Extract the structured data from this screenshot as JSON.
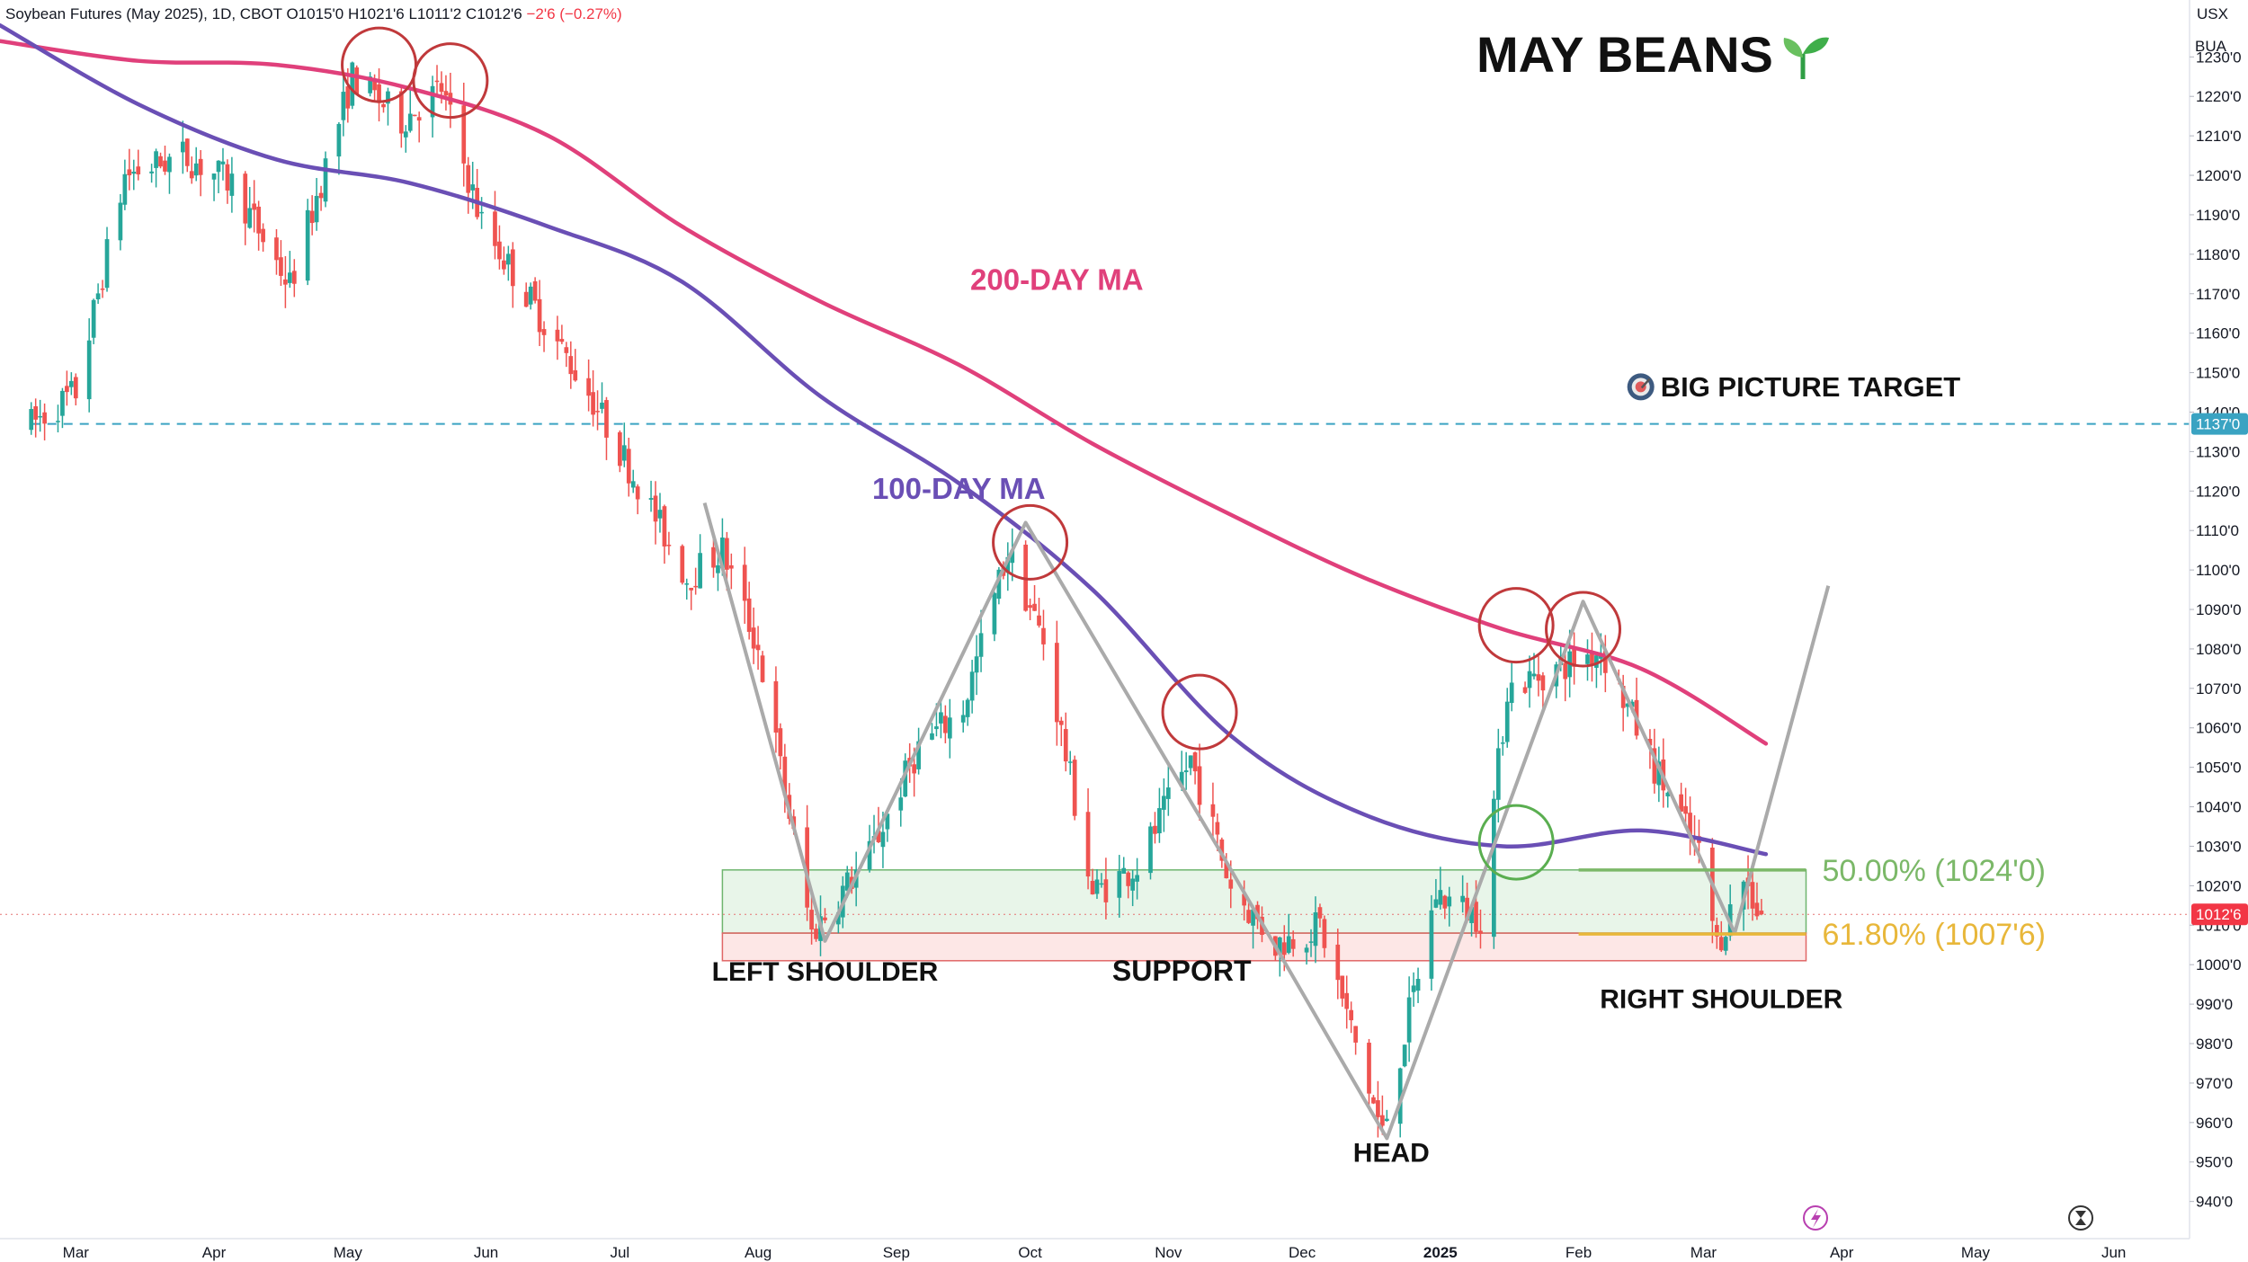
{
  "header": {
    "symbol": "Soybean Futures (May 2025), 1D, CBOT",
    "open": "O1015'0",
    "high": "H1021'6",
    "low": "L1011'2",
    "close": "C1012'6",
    "change": "−2'6 (−0.27%)"
  },
  "axis_units": {
    "currency": "USX",
    "unit": "BUA"
  },
  "title": "MAY BEANS",
  "title_icon": "seedling-icon",
  "colors": {
    "up": "#26a69a",
    "down": "#ef5350",
    "ma200": "#e0407b",
    "ma100": "#6a4fb5",
    "target_line": "#3aa3c2",
    "fib50": "#7bb868",
    "fib618": "#e8b73a",
    "circle_red": "#c0393b",
    "circle_green": "#5aae50",
    "pattern_line": "#aaaaaa"
  },
  "chart_data": {
    "type": "candlestick",
    "y_axis": {
      "ylim": [
        934,
        1241
      ],
      "ticks": [
        "1230'0",
        "1220'0",
        "1210'0",
        "1200'0",
        "1190'0",
        "1180'0",
        "1170'0",
        "1160'0",
        "1150'0",
        "1140'0",
        "1130'0",
        "1120'0",
        "1110'0",
        "1100'0",
        "1090'0",
        "1080'0",
        "1070'0",
        "1060'0",
        "1050'0",
        "1040'0",
        "1030'0",
        "1020'0",
        "1010'0",
        "1000'0",
        "990'0",
        "980'0",
        "970'0",
        "960'0",
        "950'0",
        "940'0"
      ],
      "tick_values": [
        1230,
        1220,
        1210,
        1200,
        1190,
        1180,
        1170,
        1160,
        1150,
        1140,
        1130,
        1120,
        1110,
        1100,
        1090,
        1080,
        1070,
        1060,
        1050,
        1040,
        1030,
        1020,
        1010,
        1000,
        990,
        980,
        970,
        960,
        950,
        940
      ]
    },
    "x_axis": {
      "labels": [
        "Mar",
        "Apr",
        "May",
        "Jun",
        "Jul",
        "Aug",
        "Sep",
        "Oct",
        "Nov",
        "Dec",
        "2025",
        "Feb",
        "Mar",
        "Apr",
        "May",
        "Jun"
      ],
      "label_dates": [
        "2024-03-01",
        "2024-04-01",
        "2024-05-01",
        "2024-06-01",
        "2024-07-01",
        "2024-08-01",
        "2024-09-01",
        "2024-10-01",
        "2024-11-01",
        "2024-12-01",
        "2025-01-01",
        "2025-02-01",
        "2025-03-01",
        "2025-04-01",
        "2025-05-01",
        "2025-06-01"
      ],
      "range": [
        "2024-02-13",
        "2025-06-18"
      ]
    },
    "price_path": [
      [
        "2024-02-20",
        1137
      ],
      [
        "2024-03-01",
        1145
      ],
      [
        "2024-03-12",
        1200
      ],
      [
        "2024-03-25",
        1205
      ],
      [
        "2024-04-05",
        1198
      ],
      [
        "2024-04-18",
        1172
      ],
      [
        "2024-05-02",
        1225
      ],
      [
        "2024-05-13",
        1214
      ],
      [
        "2024-05-22",
        1222
      ],
      [
        "2024-05-31",
        1188
      ],
      [
        "2024-06-10",
        1170
      ],
      [
        "2024-06-24",
        1145
      ],
      [
        "2024-07-05",
        1122
      ],
      [
        "2024-07-16",
        1098
      ],
      [
        "2024-07-24",
        1105
      ],
      [
        "2024-08-01",
        1080
      ],
      [
        "2024-08-13",
        1008
      ],
      [
        "2024-08-26",
        1028
      ],
      [
        "2024-09-06",
        1055
      ],
      [
        "2024-09-16",
        1065
      ],
      [
        "2024-09-26",
        1105
      ],
      [
        "2024-10-04",
        1082
      ],
      [
        "2024-10-15",
        1018
      ],
      [
        "2024-10-25",
        1025
      ],
      [
        "2024-11-06",
        1052
      ],
      [
        "2024-11-15",
        1020
      ],
      [
        "2024-11-25",
        1005
      ],
      [
        "2024-12-05",
        1010
      ],
      [
        "2024-12-19",
        957
      ],
      [
        "2024-12-31",
        1018
      ],
      [
        "2025-01-10",
        1012
      ],
      [
        "2025-01-16",
        1070
      ],
      [
        "2025-01-27",
        1075
      ],
      [
        "2025-02-06",
        1080
      ],
      [
        "2025-02-18",
        1050
      ],
      [
        "2025-02-28",
        1028
      ],
      [
        "2025-03-04",
        1005
      ],
      [
        "2025-03-10",
        1022
      ],
      [
        "2025-03-14",
        1012
      ]
    ],
    "last_price": {
      "label": "1012'6",
      "value": 1012.75
    },
    "series": [
      {
        "name": "200-DAY MA",
        "points": [
          [
            "2024-02-13",
            1234
          ],
          [
            "2024-03-15",
            1229
          ],
          [
            "2024-04-15",
            1228
          ],
          [
            "2024-05-15",
            1222
          ],
          [
            "2024-06-15",
            1210
          ],
          [
            "2024-07-15",
            1187
          ],
          [
            "2024-08-15",
            1168
          ],
          [
            "2024-09-15",
            1152
          ],
          [
            "2024-10-15",
            1132
          ],
          [
            "2024-11-15",
            1114
          ],
          [
            "2024-12-15",
            1098
          ],
          [
            "2025-01-15",
            1085
          ],
          [
            "2025-02-15",
            1075
          ],
          [
            "2025-03-15",
            1056
          ]
        ]
      },
      {
        "name": "100-DAY MA",
        "points": [
          [
            "2024-02-13",
            1238
          ],
          [
            "2024-03-15",
            1218
          ],
          [
            "2024-04-15",
            1204
          ],
          [
            "2024-05-15",
            1198
          ],
          [
            "2024-06-15",
            1187
          ],
          [
            "2024-07-15",
            1173
          ],
          [
            "2024-08-15",
            1144
          ],
          [
            "2024-09-15",
            1122
          ],
          [
            "2024-10-15",
            1095
          ],
          [
            "2024-11-15",
            1058
          ],
          [
            "2024-12-15",
            1038
          ],
          [
            "2025-01-15",
            1030
          ],
          [
            "2025-02-15",
            1034
          ],
          [
            "2025-03-15",
            1028
          ]
        ]
      }
    ],
    "horizontal_lines": [
      {
        "name": "big-picture-target",
        "value": 1137,
        "label": "1137'0"
      }
    ],
    "zones": [
      {
        "name": "support-green",
        "x": [
          "2024-07-24",
          "2025-03-24"
        ],
        "y": [
          1008,
          1024
        ]
      },
      {
        "name": "support-red",
        "x": [
          "2024-07-24",
          "2025-03-24"
        ],
        "y": [
          1001,
          1008
        ]
      }
    ],
    "fib_levels": [
      {
        "label": "50.00% (1024'0)",
        "value": 1024.0
      },
      {
        "label": "61.80% (1007'6)",
        "value": 1007.75
      }
    ],
    "pattern_lines": [
      [
        [
          "2024-07-20",
          1117
        ],
        [
          "2024-08-16",
          1006
        ],
        [
          "2024-09-30",
          1112
        ],
        [
          "2024-11-13",
          1028
        ],
        [
          "2024-12-20",
          956
        ],
        [
          "2025-02-02",
          1092
        ],
        [
          "2025-03-08",
          1008
        ],
        [
          "2025-03-29",
          1096
        ]
      ]
    ],
    "circles": [
      {
        "date": "2024-05-08",
        "value": 1228,
        "color": "red"
      },
      {
        "date": "2024-05-24",
        "value": 1224,
        "color": "red"
      },
      {
        "date": "2024-10-01",
        "value": 1107,
        "color": "red"
      },
      {
        "date": "2024-11-08",
        "value": 1064,
        "color": "red"
      },
      {
        "date": "2025-01-18",
        "value": 1086,
        "color": "red"
      },
      {
        "date": "2025-02-02",
        "value": 1085,
        "color": "red"
      },
      {
        "date": "2025-01-18",
        "value": 1031,
        "color": "green"
      }
    ],
    "annotations": [
      {
        "text": "200-DAY MA",
        "date": "2024-10-07",
        "value": 1171
      },
      {
        "text": "100-DAY MA",
        "date": "2024-09-15",
        "value": 1118
      },
      {
        "text": "BIG PICTURE TARGET",
        "date": "2025-03-25",
        "value": 1144
      },
      {
        "text": "LEFT SHOULDER",
        "date": "2024-08-16",
        "value": 996
      },
      {
        "text": "SUPPORT",
        "date": "2024-11-04",
        "value": 996
      },
      {
        "text": "HEAD",
        "date": "2024-12-21",
        "value": 950
      },
      {
        "text": "RIGHT SHOULDER",
        "date": "2025-03-05",
        "value": 989
      }
    ]
  }
}
